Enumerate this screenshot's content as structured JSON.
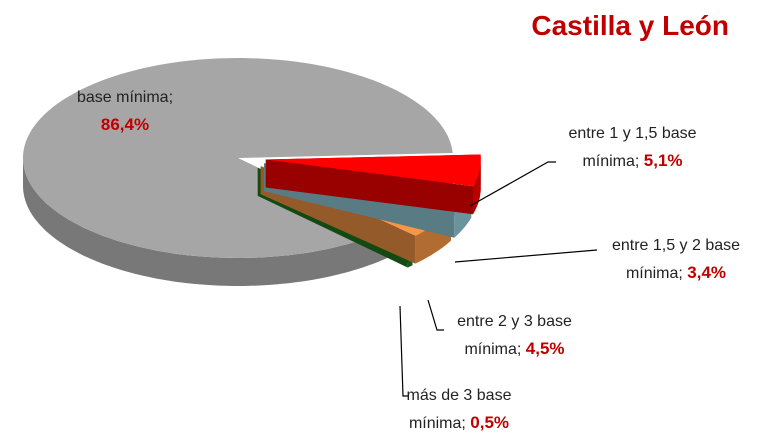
{
  "chart_data": {
    "type": "pie",
    "title": "Castilla y León",
    "categories": [
      "base mínima",
      "entre 1 y 1,5 base mínima",
      "entre 1,5 y 2 base mínima",
      "entre 2 y 3 base mínima",
      "más de 3 base mínima"
    ],
    "values": [
      86.4,
      5.1,
      3.4,
      4.5,
      0.5
    ],
    "value_labels": [
      "86,4%",
      "5,1%",
      "3,4%",
      "4,5%",
      "0,5%"
    ],
    "label_separator": ";",
    "colors": [
      "#a6a6a6",
      "#ff0000",
      "#92cddc",
      "#f79646",
      "#1e7b1e"
    ]
  }
}
